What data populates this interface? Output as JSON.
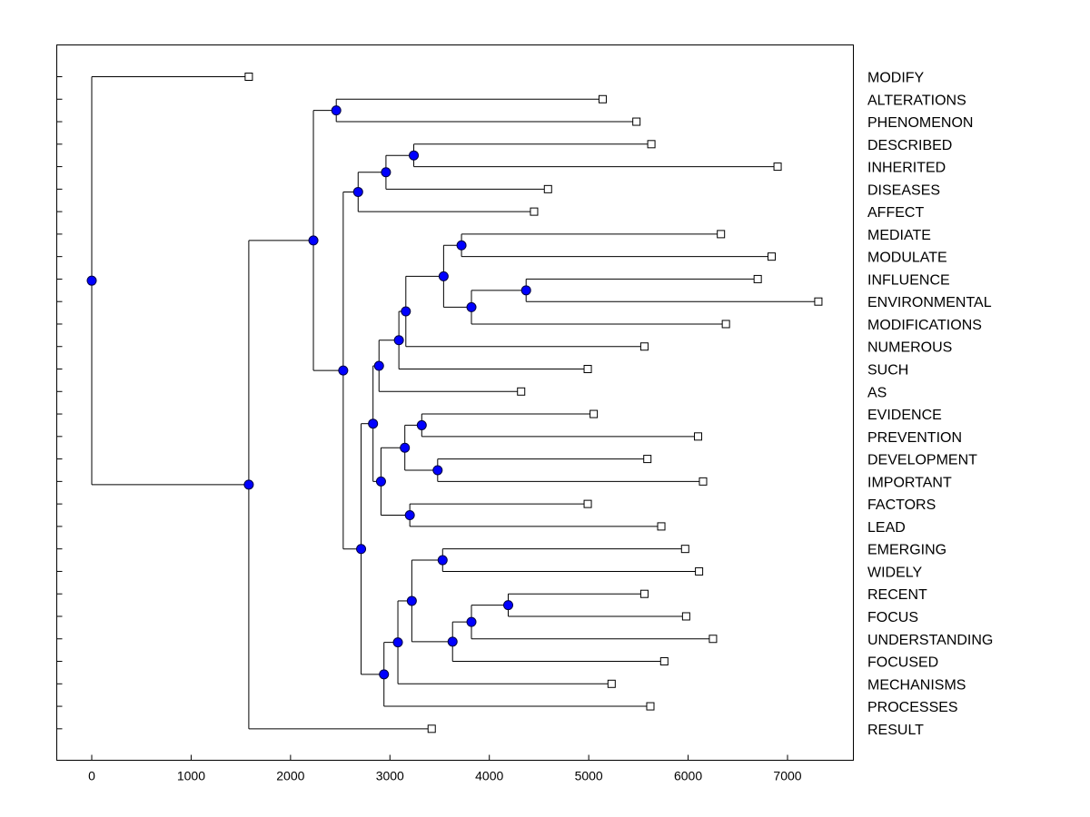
{
  "chart_data": {
    "type": "dendrogram",
    "title": "",
    "xlabel": "",
    "ylabel": "",
    "xlim": [
      -350,
      7650
    ],
    "x_ticks": [
      0,
      1000,
      2000,
      3000,
      4000,
      5000,
      6000,
      7000
    ],
    "x_tick_labels": [
      "0",
      "1000",
      "2000",
      "3000",
      "4000",
      "5000",
      "6000",
      "7000"
    ],
    "colors": {
      "node_fill": "#0000ff",
      "line": "#000000",
      "leaf_fill": "#ffffff"
    },
    "leaves": [
      {
        "label": "MODIFY",
        "x": 1580
      },
      {
        "label": "ALTERATIONS",
        "x": 5140
      },
      {
        "label": "PHENOMENON",
        "x": 5480
      },
      {
        "label": "DESCRIBED",
        "x": 5630
      },
      {
        "label": "INHERITED",
        "x": 6900
      },
      {
        "label": "DISEASES",
        "x": 4590
      },
      {
        "label": "AFFECT",
        "x": 4450
      },
      {
        "label": "MEDIATE",
        "x": 6330
      },
      {
        "label": "MODULATE",
        "x": 6840
      },
      {
        "label": "INFLUENCE",
        "x": 6700
      },
      {
        "label": "ENVIRONMENTAL",
        "x": 7310
      },
      {
        "label": "MODIFICATIONS",
        "x": 6380
      },
      {
        "label": "NUMEROUS",
        "x": 5560
      },
      {
        "label": "SUCH",
        "x": 4990
      },
      {
        "label": "AS",
        "x": 4320
      },
      {
        "label": "EVIDENCE",
        "x": 5050
      },
      {
        "label": "PREVENTION",
        "x": 6100
      },
      {
        "label": "DEVELOPMENT",
        "x": 5590
      },
      {
        "label": "IMPORTANT",
        "x": 6150
      },
      {
        "label": "FACTORS",
        "x": 4990
      },
      {
        "label": "LEAD",
        "x": 5730
      },
      {
        "label": "EMERGING",
        "x": 5970
      },
      {
        "label": "WIDELY",
        "x": 6110
      },
      {
        "label": "RECENT",
        "x": 5560
      },
      {
        "label": "FOCUS",
        "x": 5980
      },
      {
        "label": "UNDERSTANDING",
        "x": 6250
      },
      {
        "label": "FOCUSED",
        "x": 5760
      },
      {
        "label": "MECHANISMS",
        "x": 5230
      },
      {
        "label": "PROCESSES",
        "x": 5620
      },
      {
        "label": "RESULT",
        "x": 3420
      }
    ],
    "merges": [
      {
        "id": "m1",
        "x": 2460,
        "children": [
          "ALTERATIONS",
          "PHENOMENON"
        ]
      },
      {
        "id": "m2",
        "x": 3240,
        "children": [
          "DESCRIBED",
          "INHERITED"
        ]
      },
      {
        "id": "m3",
        "x": 2960,
        "children": [
          "m2",
          "DISEASES"
        ]
      },
      {
        "id": "m4",
        "x": 2680,
        "children": [
          "m3",
          "AFFECT"
        ]
      },
      {
        "id": "m5",
        "x": 3720,
        "children": [
          "MEDIATE",
          "MODULATE"
        ]
      },
      {
        "id": "m6",
        "x": 4370,
        "children": [
          "INFLUENCE",
          "ENVIRONMENTAL"
        ]
      },
      {
        "id": "m7",
        "x": 3820,
        "children": [
          "m6",
          "MODIFICATIONS"
        ]
      },
      {
        "id": "m8",
        "x": 3540,
        "children": [
          "m5",
          "m7"
        ]
      },
      {
        "id": "m9",
        "x": 3160,
        "children": [
          "m8",
          "NUMEROUS"
        ]
      },
      {
        "id": "m10",
        "x": 3090,
        "children": [
          "m9",
          "SUCH"
        ]
      },
      {
        "id": "m11",
        "x": 2890,
        "children": [
          "m10",
          "AS"
        ]
      },
      {
        "id": "m12",
        "x": 3320,
        "children": [
          "EVIDENCE",
          "PREVENTION"
        ]
      },
      {
        "id": "m13",
        "x": 3480,
        "children": [
          "DEVELOPMENT",
          "IMPORTANT"
        ]
      },
      {
        "id": "m14",
        "x": 3150,
        "children": [
          "m12",
          "m13"
        ]
      },
      {
        "id": "m15",
        "x": 3200,
        "children": [
          "FACTORS",
          "LEAD"
        ]
      },
      {
        "id": "m16",
        "x": 2910,
        "children": [
          "m14",
          "m15"
        ]
      },
      {
        "id": "m17",
        "x": 2830,
        "children": [
          "m11",
          "m16"
        ]
      },
      {
        "id": "m18",
        "x": 3530,
        "children": [
          "EMERGING",
          "WIDELY"
        ]
      },
      {
        "id": "m19",
        "x": 4190,
        "children": [
          "RECENT",
          "FOCUS"
        ]
      },
      {
        "id": "m20",
        "x": 3820,
        "children": [
          "m19",
          "UNDERSTANDING"
        ]
      },
      {
        "id": "m21",
        "x": 3630,
        "children": [
          "m20",
          "FOCUSED"
        ]
      },
      {
        "id": "m22",
        "x": 3220,
        "children": [
          "m18",
          "m21"
        ]
      },
      {
        "id": "m23",
        "x": 3080,
        "children": [
          "m22",
          "MECHANISMS"
        ]
      },
      {
        "id": "m24",
        "x": 2940,
        "children": [
          "m23",
          "PROCESSES"
        ]
      },
      {
        "id": "m25",
        "x": 2710,
        "children": [
          "m17",
          "m24"
        ]
      },
      {
        "id": "m26",
        "x": 2530,
        "children": [
          "m4",
          "m25"
        ]
      },
      {
        "id": "m27",
        "x": 2230,
        "children": [
          "m1",
          "m26"
        ]
      },
      {
        "id": "m28",
        "x": 1580,
        "children": [
          "m27",
          "RESULT"
        ]
      },
      {
        "id": "m29",
        "x": 0,
        "children": [
          "MODIFY",
          "m28"
        ]
      }
    ]
  }
}
